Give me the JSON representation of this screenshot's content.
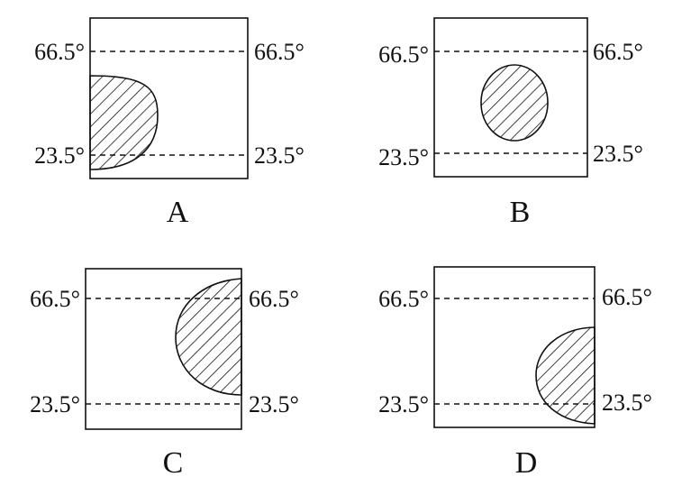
{
  "figure": {
    "panels": [
      {
        "caption": "A",
        "left_top": "66.5°",
        "left_bottom": "23.5°",
        "right_top": "66.5°",
        "right_bottom": "23.5°"
      },
      {
        "caption": "B",
        "left_top": "66.5°",
        "left_bottom": "23.5°",
        "right_top": "66.5°",
        "right_bottom": "23.5°"
      },
      {
        "caption": "C",
        "left_top": "66.5°",
        "left_bottom": "23.5°",
        "right_top": "66.5°",
        "right_bottom": "23.5°"
      },
      {
        "caption": "D",
        "left_top": "66.5°",
        "left_bottom": "23.5°",
        "right_top": "66.5°",
        "right_bottom": "23.5°"
      }
    ],
    "colors": {
      "line": "#111111",
      "background": "#ffffff"
    }
  }
}
